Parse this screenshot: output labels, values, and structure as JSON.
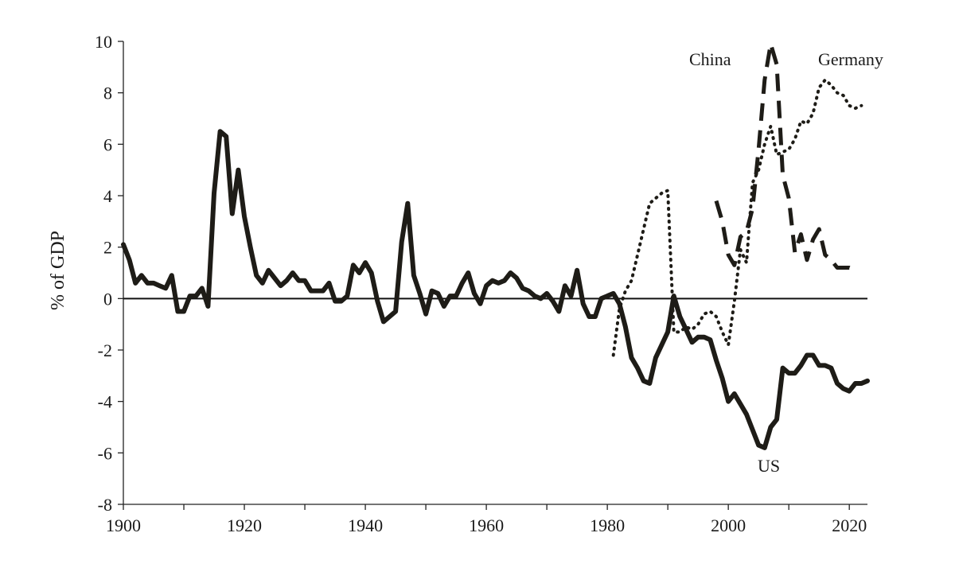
{
  "chart_data": {
    "type": "line",
    "title": "",
    "xlabel": "",
    "ylabel": "% of GDP",
    "xlim": [
      1900,
      2023
    ],
    "ylim": [
      -8,
      10
    ],
    "x_ticks": [
      1900,
      1920,
      1940,
      1960,
      1980,
      2000,
      2020
    ],
    "y_ticks": [
      -8,
      -6,
      -4,
      -2,
      0,
      2,
      4,
      6,
      8,
      10
    ],
    "grid": false,
    "zero_line": true,
    "series": [
      {
        "name": "US",
        "style": "solid",
        "x": [
          1900,
          1901,
          1902,
          1903,
          1904,
          1905,
          1906,
          1907,
          1908,
          1909,
          1910,
          1911,
          1912,
          1913,
          1914,
          1915,
          1916,
          1917,
          1918,
          1919,
          1920,
          1921,
          1922,
          1923,
          1924,
          1925,
          1926,
          1927,
          1928,
          1929,
          1930,
          1931,
          1932,
          1933,
          1934,
          1935,
          1936,
          1937,
          1938,
          1939,
          1940,
          1941,
          1942,
          1943,
          1944,
          1945,
          1946,
          1947,
          1948,
          1949,
          1950,
          1951,
          1952,
          1953,
          1954,
          1955,
          1956,
          1957,
          1958,
          1959,
          1960,
          1961,
          1962,
          1963,
          1964,
          1965,
          1966,
          1967,
          1968,
          1969,
          1970,
          1971,
          1972,
          1973,
          1974,
          1975,
          1976,
          1977,
          1978,
          1979,
          1980,
          1981,
          1982,
          1983,
          1984,
          1985,
          1986,
          1987,
          1988,
          1989,
          1990,
          1991,
          1992,
          1993,
          1994,
          1995,
          1996,
          1997,
          1998,
          1999,
          2000,
          2001,
          2002,
          2003,
          2004,
          2005,
          2006,
          2007,
          2008,
          2009,
          2010,
          2011,
          2012,
          2013,
          2014,
          2015,
          2016,
          2017,
          2018,
          2019,
          2020,
          2021,
          2022,
          2023
        ],
        "values": [
          2.1,
          1.5,
          0.6,
          0.9,
          0.6,
          0.6,
          0.5,
          0.4,
          0.9,
          -0.5,
          -0.5,
          0.1,
          0.1,
          0.4,
          -0.3,
          4.1,
          6.5,
          6.3,
          3.3,
          5.0,
          3.2,
          2.0,
          0.9,
          0.6,
          1.1,
          0.8,
          0.5,
          0.7,
          1.0,
          0.7,
          0.7,
          0.3,
          0.3,
          0.3,
          0.6,
          -0.1,
          -0.1,
          0.1,
          1.3,
          1.0,
          1.4,
          1.0,
          -0.1,
          -0.9,
          -0.7,
          -0.5,
          2.2,
          3.7,
          0.9,
          0.2,
          -0.6,
          0.3,
          0.2,
          -0.3,
          0.1,
          0.1,
          0.6,
          1.0,
          0.2,
          -0.2,
          0.5,
          0.7,
          0.6,
          0.7,
          1.0,
          0.8,
          0.4,
          0.3,
          0.1,
          0.0,
          0.2,
          -0.1,
          -0.5,
          0.5,
          0.1,
          1.1,
          -0.2,
          -0.7,
          -0.7,
          0.0,
          0.1,
          0.2,
          -0.2,
          -1.1,
          -2.3,
          -2.7,
          -3.2,
          -3.3,
          -2.3,
          -1.8,
          -1.3,
          0.1,
          -0.7,
          -1.2,
          -1.7,
          -1.5,
          -1.5,
          -1.6,
          -2.4,
          -3.1,
          -4.0,
          -3.7,
          -4.1,
          -4.5,
          -5.1,
          -5.7,
          -5.8,
          -5.0,
          -4.7,
          -2.7,
          -2.9,
          -2.9,
          -2.6,
          -2.2,
          -2.2,
          -2.6,
          -2.6,
          -2.7,
          -3.3,
          -3.5,
          -3.6,
          -3.3,
          -3.3,
          -3.2
        ]
      },
      {
        "name": "Germany",
        "style": "dotted",
        "x": [
          1981,
          1982,
          1983,
          1984,
          1985,
          1986,
          1987,
          1988,
          1989,
          1990,
          1991,
          1992,
          1993,
          1994,
          1995,
          1996,
          1997,
          1998,
          1999,
          2000,
          2001,
          2002,
          2003,
          2004,
          2005,
          2006,
          2007,
          2008,
          2009,
          2010,
          2011,
          2012,
          2013,
          2014,
          2015,
          2016,
          2017,
          2018,
          2019,
          2020,
          2021,
          2022
        ],
        "values": [
          -2.2,
          -0.4,
          0.3,
          0.7,
          1.7,
          2.7,
          3.7,
          3.9,
          4.1,
          4.2,
          -1.3,
          -1.3,
          -1.1,
          -1.2,
          -1.0,
          -0.6,
          -0.5,
          -0.7,
          -1.3,
          -1.8,
          -0.1,
          1.9,
          1.4,
          4.5,
          5.0,
          6.0,
          6.7,
          5.6,
          5.7,
          5.8,
          6.2,
          6.9,
          6.8,
          7.2,
          8.2,
          8.5,
          8.3,
          8.0,
          7.9,
          7.5,
          7.4,
          7.5
        ]
      },
      {
        "name": "China",
        "style": "dashed",
        "x": [
          1998,
          1999,
          2000,
          2001,
          2002,
          2003,
          2004,
          2005,
          2006,
          2007,
          2008,
          2009,
          2010,
          2011,
          2012,
          2013,
          2014,
          2015,
          2016,
          2017,
          2018,
          2019,
          2020,
          2021
        ],
        "values": [
          3.8,
          3.0,
          1.7,
          1.3,
          2.4,
          2.6,
          3.5,
          5.8,
          8.5,
          9.9,
          9.1,
          4.8,
          3.9,
          1.8,
          2.5,
          1.5,
          2.3,
          2.7,
          1.7,
          1.5,
          1.2,
          1.2,
          1.2,
          1.1
        ]
      }
    ]
  }
}
